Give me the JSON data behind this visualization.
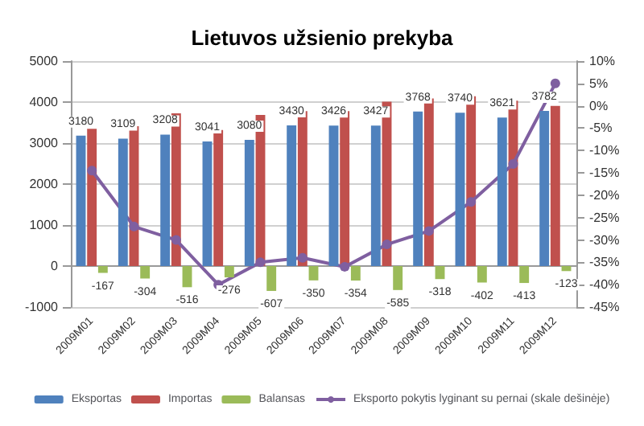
{
  "chart_data": {
    "type": "bar",
    "title": "Lietuvos užsienio prekyba",
    "categories": [
      "2009M01",
      "2009M02",
      "2009M03",
      "2009M04",
      "2009M05",
      "2009M06",
      "2009M07",
      "2009M08",
      "2009M09",
      "2009M10",
      "2009M11",
      "2009M12"
    ],
    "series": [
      {
        "name": "Eksportas",
        "color": "#4f81bd",
        "values": [
          3180,
          3109,
          3208,
          3041,
          3080,
          3430,
          3426,
          3427,
          3768,
          3740,
          3621,
          3782
        ],
        "value_labels": [
          "3180",
          "3109",
          "3208",
          "3041",
          "3080",
          "3430",
          "3426",
          "3427",
          "3768",
          "3740",
          "3621",
          "3782"
        ]
      },
      {
        "name": "Importas",
        "color": "#c0504d",
        "values": [
          3347,
          3413,
          3724,
          3317,
          3687,
          3780,
          3780,
          4012,
          4086,
          4142,
          4034,
          3905
        ]
      },
      {
        "name": "Balansas",
        "color": "#9bbb59",
        "values": [
          -167,
          -304,
          -516,
          -276,
          -607,
          -350,
          -354,
          -585,
          -318,
          -402,
          -413,
          -123
        ],
        "value_labels": [
          "-167",
          "-304",
          "-516",
          "-276",
          "-607",
          "-350",
          "-354",
          "-585",
          "-318",
          "-402",
          "-413",
          "-123"
        ]
      },
      {
        "name": "Eksporto pokytis lyginant su pernai (skale dešinėje)",
        "type": "line",
        "axis": "y2",
        "color": "#7f5fa0",
        "marker": "circle",
        "values": [
          -14.5,
          -27,
          -30,
          -40,
          -35,
          -34,
          -36,
          -31,
          -28,
          -21.5,
          -13,
          5
        ]
      }
    ],
    "ylim": [
      -1000,
      5000
    ],
    "yticks": [
      -1000,
      0,
      1000,
      2000,
      3000,
      4000,
      5000
    ],
    "y2lim": [
      -45,
      10
    ],
    "y2ticks": [
      {
        "value": -45,
        "label": "-45%"
      },
      {
        "value": -40,
        "label": "-40%"
      },
      {
        "value": -35,
        "label": "-35%"
      },
      {
        "value": -30,
        "label": "-30%"
      },
      {
        "value": -25,
        "label": "-25%"
      },
      {
        "value": -20,
        "label": "-20%"
      },
      {
        "value": -15,
        "label": "-15%"
      },
      {
        "value": -10,
        "label": "-10%"
      },
      {
        "value": -5,
        "label": "-5%"
      },
      {
        "value": 0,
        "label": "0%"
      },
      {
        "value": 5,
        "label": "5%"
      },
      {
        "value": 10,
        "label": "10%"
      }
    ],
    "grid": "y",
    "legend": "bottom"
  }
}
